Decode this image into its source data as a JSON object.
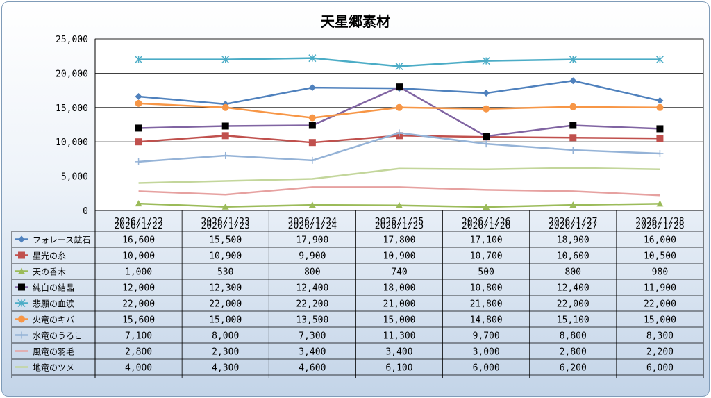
{
  "chart_data": {
    "type": "line",
    "title": "天星郷素材",
    "categories": [
      "2026/1/22",
      "2026/1/23",
      "2026/1/24",
      "2026/1/25",
      "2026/1/26",
      "2026/1/27",
      "2026/1/28"
    ],
    "ylim": [
      0,
      25000
    ],
    "yticks": [
      "0",
      "5,000",
      "10,000",
      "15,000",
      "20,000",
      "25,000"
    ],
    "grid": true,
    "legend": "data-table",
    "series": [
      {
        "name": "フォレース鉱石",
        "color": "#4f81bd",
        "marker": "diamond",
        "values": [
          16600,
          15500,
          17900,
          17800,
          17100,
          18900,
          16000
        ],
        "labels": [
          "16,600",
          "15,500",
          "17,900",
          "17,800",
          "17,100",
          "18,900",
          "16,000"
        ]
      },
      {
        "name": "星光の糸",
        "color": "#c0504d",
        "marker": "square",
        "values": [
          10000,
          10900,
          9900,
          10900,
          10700,
          10600,
          10500
        ],
        "labels": [
          "10,000",
          "10,900",
          "9,900",
          "10,900",
          "10,700",
          "10,600",
          "10,500"
        ]
      },
      {
        "name": "天の香木",
        "color": "#9bbb59",
        "marker": "triangle",
        "values": [
          1000,
          530,
          800,
          740,
          500,
          800,
          980
        ],
        "labels": [
          "1,000",
          "530",
          "800",
          "740",
          "500",
          "800",
          "980"
        ]
      },
      {
        "name": "純白の結晶",
        "color": "#8064a2",
        "marker": "blacksquare",
        "values": [
          12000,
          12300,
          12400,
          18000,
          10800,
          12400,
          11900
        ],
        "labels": [
          "12,000",
          "12,300",
          "12,400",
          "18,000",
          "10,800",
          "12,400",
          "11,900"
        ]
      },
      {
        "name": "悲願の血涙",
        "color": "#4bacc6",
        "marker": "star",
        "values": [
          22000,
          22000,
          22200,
          21000,
          21800,
          22000,
          22000
        ],
        "labels": [
          "22,000",
          "22,000",
          "22,200",
          "21,000",
          "21,800",
          "22,000",
          "22,000"
        ]
      },
      {
        "name": "火竜のキバ",
        "color": "#f79646",
        "marker": "circle",
        "values": [
          15600,
          15000,
          13500,
          15000,
          14800,
          15100,
          15000
        ],
        "labels": [
          "15,600",
          "15,000",
          "13,500",
          "15,000",
          "14,800",
          "15,100",
          "15,000"
        ]
      },
      {
        "name": "水竜のうろこ",
        "color": "#95b3d7",
        "marker": "plus",
        "values": [
          7100,
          8000,
          7300,
          11300,
          9700,
          8800,
          8300
        ],
        "labels": [
          "7,100",
          "8,000",
          "7,300",
          "11,300",
          "9,700",
          "8,800",
          "8,300"
        ]
      },
      {
        "name": "風竜の羽毛",
        "color": "#e6a1a0",
        "marker": "none",
        "values": [
          2800,
          2300,
          3400,
          3400,
          3000,
          2800,
          2200
        ],
        "labels": [
          "2,800",
          "2,300",
          "3,400",
          "3,400",
          "3,000",
          "2,800",
          "2,200"
        ]
      },
      {
        "name": "地竜のツメ",
        "color": "#c3d69b",
        "marker": "none",
        "values": [
          4000,
          4300,
          4600,
          6100,
          6000,
          6200,
          6000
        ],
        "labels": [
          "4,000",
          "4,300",
          "4,600",
          "6,100",
          "6,000",
          "6,200",
          "6,000"
        ]
      }
    ]
  }
}
